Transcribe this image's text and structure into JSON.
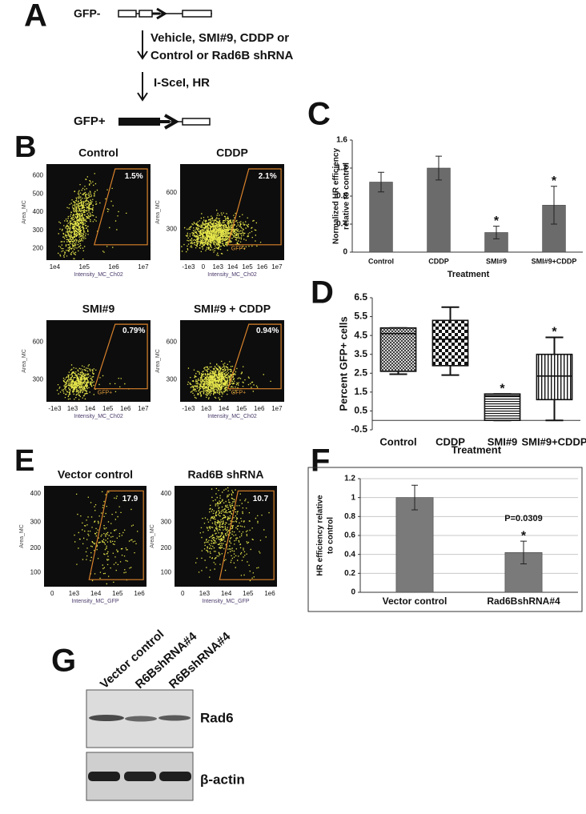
{
  "panel_a": {
    "label": "A",
    "before": "GFP-",
    "treatment": [
      "Vehicle, SMI#9, CDDP or",
      "Control or Rad6B shRNA"
    ],
    "step": "I-SceI, HR",
    "after": "GFP+"
  },
  "panel_b": {
    "label": "B",
    "plots": [
      {
        "title": "Control",
        "gate": "1.5%",
        "ylabel": "Area_MC",
        "xlabel": "Intensity_MC_Ch02",
        "yticks": [
          600,
          500,
          400,
          300,
          200
        ],
        "xticks": [
          "1e4",
          "1e5",
          "1e6",
          "1e7"
        ]
      },
      {
        "title": "CDDP",
        "gate": "2.1%",
        "gate_label": "GFP+",
        "ylabel": "Area_MC",
        "xlabel": "Intensity_MC_Ch02",
        "yticks": [
          600,
          300
        ],
        "xticks": [
          "-1e3",
          0,
          "1e3",
          "1e4",
          "1e5",
          "1e6",
          "1e7"
        ]
      },
      {
        "title": "SMI#9",
        "gate": "0.79%",
        "gate_label": "GFP+",
        "ylabel": "Area_MC",
        "xlabel": "Intensity_MC_Ch02",
        "yticks": [
          600,
          300
        ],
        "xticks": [
          "-1e3",
          "1e3",
          "1e4",
          "1e5",
          "1e6",
          "1e7"
        ]
      },
      {
        "title": "SMI#9 + CDDP",
        "gate": "0.94%",
        "gate_label": "GFP+",
        "ylabel": "Area_MC",
        "xlabel": "Intensity_MC_Ch02",
        "yticks": [
          600,
          300
        ],
        "xticks": [
          "-1e3",
          "1e3",
          "1e4",
          "1e5",
          "1e6",
          "1e7"
        ]
      }
    ]
  },
  "chart_data": [
    {
      "panel": "C",
      "type": "bar",
      "ylabel": [
        "Normalized  HR efficiency",
        "relative  to control"
      ],
      "xlabel": "Treatment",
      "categories": [
        "Control",
        "CDDP",
        "SMI#9",
        "SMI#9+CDDP"
      ],
      "values": [
        1.0,
        1.2,
        0.28,
        0.67
      ],
      "errors": [
        0.14,
        0.17,
        0.09,
        0.27
      ],
      "color": "#6b6b6b",
      "ylim": [
        0,
        1.6
      ],
      "yticks": [
        0,
        0.4,
        0.8,
        1.2,
        1.6
      ],
      "grid": false,
      "annotations": [
        {
          "text": "*",
          "category": 2
        },
        {
          "text": "*",
          "category": 3
        }
      ]
    },
    {
      "panel": "D",
      "type": "box",
      "ylabel": [
        "Percent  GFP+ cells"
      ],
      "xlabel": "Treatment",
      "categories": [
        "Control",
        "CDDP",
        "SMI#9",
        "SMI#9+CDDP"
      ],
      "min": [
        2.45,
        2.4,
        0.0,
        0.0
      ],
      "q1": [
        2.6,
        2.9,
        0.0,
        1.1
      ],
      "median": [
        4.6,
        4.3,
        1.3,
        2.35
      ],
      "q3": [
        4.9,
        5.3,
        1.4,
        3.5
      ],
      "max": [
        4.9,
        6.0,
        1.4,
        4.4
      ],
      "fills": [
        "crosshatch",
        "checker",
        "hlines",
        "vlines"
      ],
      "ylim": [
        -0.5,
        6.5
      ],
      "yticks": [
        -0.5,
        0.5,
        1.5,
        2.5,
        3.5,
        4.5,
        5.5,
        6.5
      ],
      "grid": false,
      "annotations": [
        {
          "text": "*",
          "category": 2
        },
        {
          "text": "*",
          "category": 3
        }
      ]
    },
    {
      "panel": "F",
      "type": "bar",
      "ylabel": [
        "HR efficiency  relative",
        "to control"
      ],
      "categories": [
        "Vector control",
        "Rad6BshRNA#4"
      ],
      "values": [
        1.0,
        0.42
      ],
      "errors": [
        0.13,
        0.12
      ],
      "color": "#7a7a7a",
      "ylim": [
        0,
        1.2
      ],
      "yticks": [
        0,
        0.2,
        0.4,
        0.6,
        0.8,
        1,
        1.2
      ],
      "grid": true,
      "annotations": [
        {
          "text": "*",
          "category": 1
        },
        {
          "text": "P=0.0309",
          "category": 1
        }
      ]
    }
  ],
  "panel_e": {
    "label": "E",
    "plots": [
      {
        "title": "Vector control",
        "gate": "17.9",
        "ylabel": "Area_MC",
        "xlabel": "Intensity_MC_GFP",
        "yticks": [
          400,
          300,
          200,
          100
        ],
        "xticks": [
          0,
          "1e3",
          "1e4",
          "1e5",
          "1e6"
        ]
      },
      {
        "title": "Rad6B shRNA",
        "gate": "10.7",
        "ylabel": "Area_MC",
        "xlabel": "Intensity_MC_GFP",
        "yticks": [
          400,
          300,
          200,
          100
        ],
        "xticks": [
          0,
          "1e3",
          "1e4",
          "1e5",
          "1e6"
        ]
      }
    ]
  },
  "panel_g": {
    "label": "G",
    "lanes": [
      "Vector control",
      "R6BshRNA#4",
      "R6BshRNA#4"
    ],
    "blots": [
      "Rad6",
      "β-actin"
    ]
  }
}
